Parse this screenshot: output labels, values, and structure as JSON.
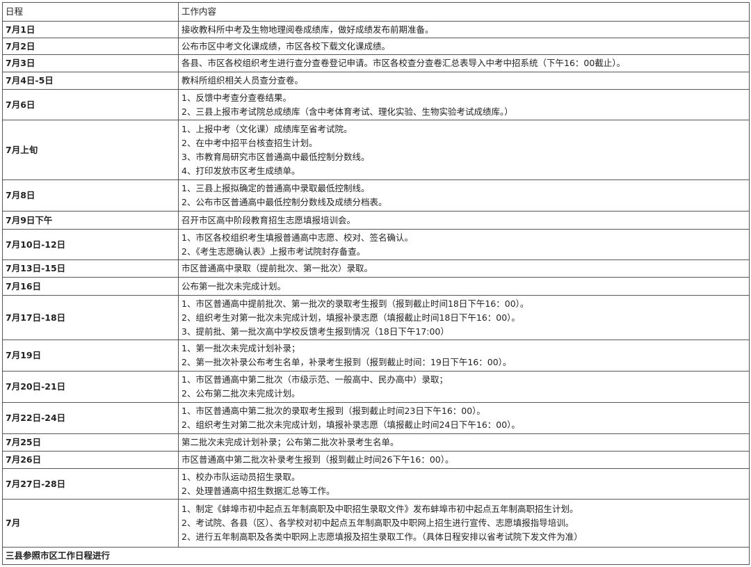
{
  "header": {
    "date": "日程",
    "content": "工作内容"
  },
  "rows": [
    {
      "date": "7月1日",
      "items": [
        "接收教科所中考及生物地理阅卷成绩库，做好成绩发布前期准备。"
      ]
    },
    {
      "date": "7月2日",
      "items": [
        "公布市区中考文化课成绩，市区各校下载文化课成绩。"
      ]
    },
    {
      "date": "7月3日",
      "items": [
        "各县、市区各校组织考生进行查分查卷登记申请。市区各校查分查卷汇总表导入中考中招系统（下午16：00截止）。"
      ]
    },
    {
      "date": "7月4日-5日",
      "items": [
        "教科所组织相关人员查分查卷。"
      ]
    },
    {
      "date": "7月6日",
      "items": [
        "1、反馈中考查分查卷结果。",
        "2、三县上报市考试院总成绩库（含中考体育考试、理化实验、生物实验考试成绩库。）"
      ]
    },
    {
      "date": "7月上旬",
      "items": [
        "1、上报中考（文化课）成绩库至省考试院。",
        "2、在中考中招平台核查招生计划。",
        "3、市教育局研究市区普通高中最低控制分数线。",
        "4、打印发放市区考生成绩单。"
      ]
    },
    {
      "date": "7月8日",
      "items": [
        "1、三县上报拟确定的普通高中录取最低控制线。",
        "2、公布市区普通高中最低控制分数线及成绩分档表。"
      ]
    },
    {
      "date": "7月9日下午",
      "items": [
        "召开市区高中阶段教育招生志愿填报培训会。"
      ]
    },
    {
      "date": "7月10日-12日",
      "items": [
        "1、市区各校组织考生填报普通高中志愿、校对、签名确认。",
        "2、《考生志愿确认表》上报市考试院封存备查。"
      ]
    },
    {
      "date": "7月13日-15日",
      "items": [
        "市区普通高中录取（提前批次、第一批次）录取。"
      ]
    },
    {
      "date": "7月16日",
      "items": [
        "公布第一批次未完成计划。"
      ]
    },
    {
      "date": "7月17日-18日",
      "items": [
        "1、市区普通高中提前批次、第一批次的录取考生报到（报到截止时间18日下午16：00）。",
        "2、组织考生对第一批次未完成计划，填报补录志愿（填报截止时间18日下午16：00）。",
        "3、提前批、第一批次高中学校反馈考生报到情况（18日下午17:00）"
      ]
    },
    {
      "date": "7月19日",
      "items": [
        "1、第一批次未完成计划补录；",
        "2、第一批次补录公布考生名单，补录考生报到（报到截止时间：19日下午16：00）。"
      ]
    },
    {
      "date": "7月20日-21日",
      "items": [
        "1、市区普通高中第二批次（市级示范、一般高中、民办高中）录取；",
        "2、公布第二批次未完成计划。"
      ]
    },
    {
      "date": "7月22日-24日",
      "items": [
        "1、市区普通高中第二批次的录取考生报到（报到截止时间23日下午16：00）。",
        "2、组织考生对第二批次未完成计划，填报补录志愿（填报截止时间24日下午16：00）。"
      ]
    },
    {
      "date": "7月25日",
      "items": [
        "第二批次未完成计划补录；公布第二批次补录考生名单。"
      ]
    },
    {
      "date": "7月26日",
      "items": [
        "市区普通高中第二批次补录考生报到（报到截止时间26下午16：00）。"
      ]
    },
    {
      "date": "7月27日-28日",
      "items": [
        "1、校办市队运动员招生录取。",
        "2、处理普通高中招生数据汇总等工作。"
      ]
    },
    {
      "date": "7月",
      "items": [
        "1、制定《蚌埠市初中起点五年制高职及中职招生录取文件》发布蚌埠市初中起点五年制高职招生计划。",
        "2、考试院、各县（区）、各学校对初中起点五年制高职及中职网上招生进行宣传、志愿填报指导培训。",
        "2、进行五年制高职及各类中职网上志愿填报及招生录取工作。（具体日程安排以省考试院下发文件为准）"
      ]
    }
  ],
  "footer": "三县参照市区工作日程进行"
}
